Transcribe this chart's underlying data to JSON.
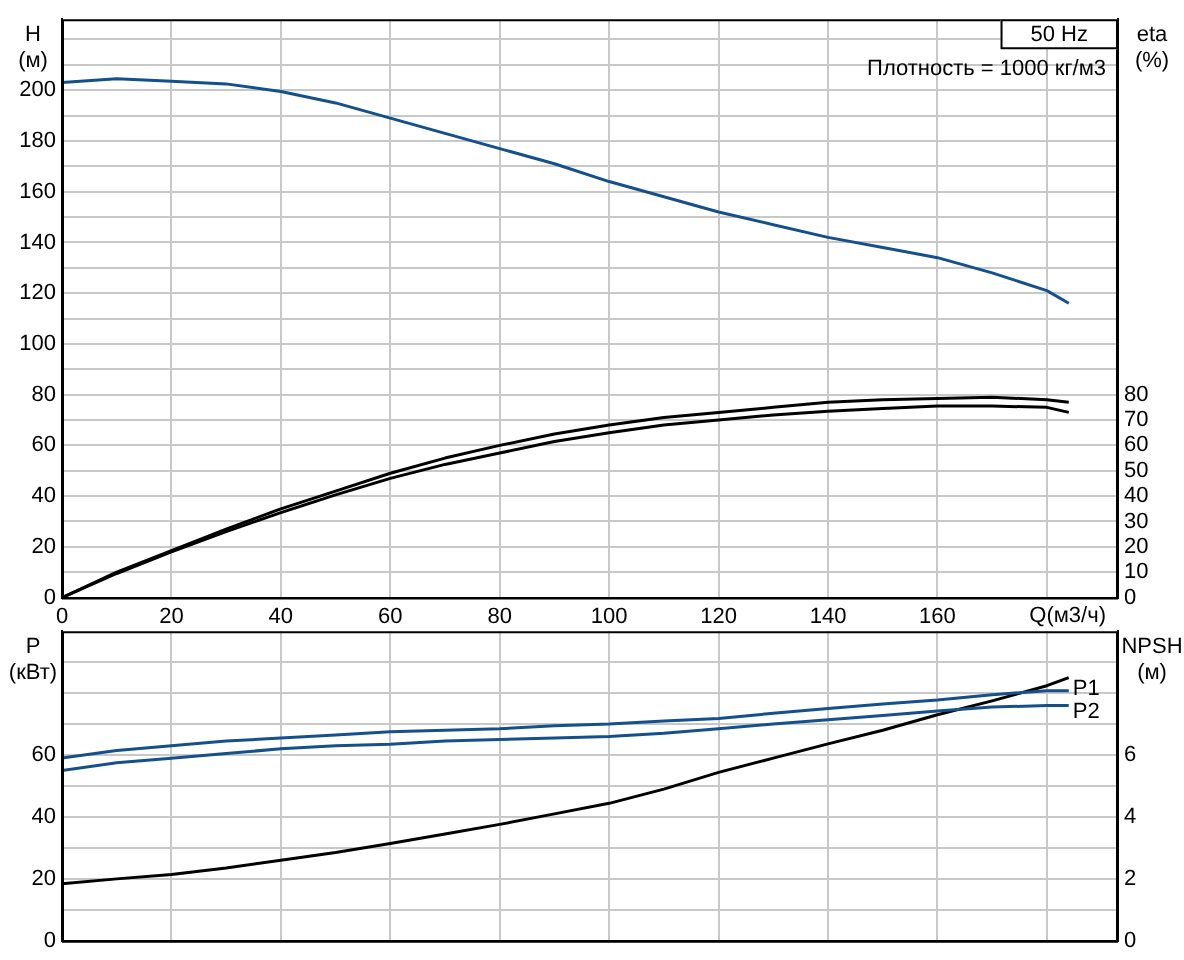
{
  "chart_data": [
    {
      "type": "line",
      "title": "50 Hz",
      "annotations": [
        "Плотность = 1000 кг/м3"
      ],
      "xlabel": "Q(м3/ч)",
      "ylabel": "H (м)",
      "y2label": "eta (%)",
      "x": [
        0,
        10,
        20,
        30,
        40,
        50,
        60,
        70,
        80,
        90,
        100,
        110,
        120,
        130,
        140,
        150,
        160,
        170,
        180,
        184
      ],
      "series": [
        {
          "color": "#14508c",
          "values": [
            203,
            204.5,
            203.5,
            202.5,
            199.5,
            195,
            189,
            183,
            177,
            171,
            164,
            158,
            152,
            147,
            142,
            138,
            134,
            128,
            121,
            116
          ]
        },
        {
          "color": "#000000",
          "axis": "y2",
          "values": [
            0,
            10,
            18.5,
            27,
            35,
            42,
            49,
            55,
            60,
            64.5,
            68,
            71,
            73,
            75,
            77,
            78,
            78.5,
            79,
            78,
            77
          ]
        },
        {
          "color": "#000000",
          "axis": "y2",
          "values": [
            0,
            9.5,
            18,
            26,
            33.5,
            40.5,
            47,
            52.5,
            57,
            61.5,
            65,
            68,
            70,
            72,
            73.5,
            74.5,
            75.5,
            75.5,
            75,
            73
          ]
        }
      ],
      "xlim": [
        0,
        193
      ],
      "xticks": [
        0,
        20,
        40,
        60,
        80,
        100,
        120,
        140,
        160,
        {
          "value": 180,
          "label": null
        }
      ],
      "ylim": [
        0,
        228
      ],
      "yticks": [
        0,
        {
          "value": 10,
          "label": null
        },
        20,
        {
          "value": 30,
          "label": null
        },
        40,
        {
          "value": 50,
          "label": null
        },
        60,
        {
          "value": 70,
          "label": null
        },
        80,
        {
          "value": 90,
          "label": null
        },
        100,
        {
          "value": 110,
          "label": null
        },
        120,
        {
          "value": 130,
          "label": null
        },
        140,
        {
          "value": 150,
          "label": null
        },
        160,
        {
          "value": 170,
          "label": null
        },
        180,
        {
          "value": 190,
          "label": null
        },
        200,
        {
          "value": 210,
          "label": null
        },
        {
          "value": 220,
          "label": null
        }
      ],
      "y2lim": [
        0,
        228
      ],
      "y2ticks": [
        0,
        10,
        20,
        30,
        40,
        50,
        60,
        70,
        80
      ],
      "grid": true,
      "marker": "none"
    },
    {
      "type": "line",
      "ylabel": "P (кВт)",
      "y2label": "NPSH (м)",
      "x": [
        0,
        10,
        20,
        30,
        40,
        50,
        60,
        70,
        80,
        90,
        100,
        110,
        120,
        130,
        140,
        150,
        160,
        170,
        180,
        184
      ],
      "series": [
        {
          "name": "P1",
          "color": "#14508c",
          "values": [
            59,
            61.5,
            63,
            64.5,
            65.5,
            66.5,
            67.5,
            68,
            68.5,
            69.5,
            70,
            71,
            71.8,
            73.5,
            75,
            76.5,
            77.8,
            79.5,
            80.8,
            80.8
          ]
        },
        {
          "name": "P2",
          "color": "#14508c",
          "values": [
            55,
            57.5,
            59,
            60.5,
            62,
            63,
            63.5,
            64.5,
            65,
            65.5,
            66,
            67,
            68.5,
            70,
            71.4,
            72.8,
            74.2,
            75.5,
            76,
            76
          ]
        },
        {
          "color": "#000000",
          "axis": "y2",
          "values": [
            1.84,
            2,
            2.14,
            2.35,
            2.6,
            2.85,
            3.14,
            3.45,
            3.76,
            4.1,
            4.44,
            4.9,
            5.44,
            5.9,
            6.36,
            6.8,
            7.3,
            7.75,
            8.24,
            8.5
          ]
        }
      ],
      "xlim": [
        0,
        193
      ],
      "xticks": [
        0,
        20,
        40,
        60,
        80,
        100,
        120,
        140,
        160,
        180
      ],
      "ylim": [
        0,
        100
      ],
      "yticks": [
        0,
        {
          "value": 10,
          "label": null
        },
        20,
        {
          "value": 30,
          "label": null
        },
        40,
        {
          "value": 50,
          "label": null
        },
        60,
        {
          "value": 70,
          "label": null
        },
        {
          "value": 80,
          "label": null
        },
        {
          "value": 90,
          "label": null
        }
      ],
      "y2lim": [
        0,
        10
      ],
      "y2ticks": [
        0,
        2,
        4,
        6
      ],
      "grid": true,
      "marker": "none",
      "tick_labels": "y"
    }
  ]
}
